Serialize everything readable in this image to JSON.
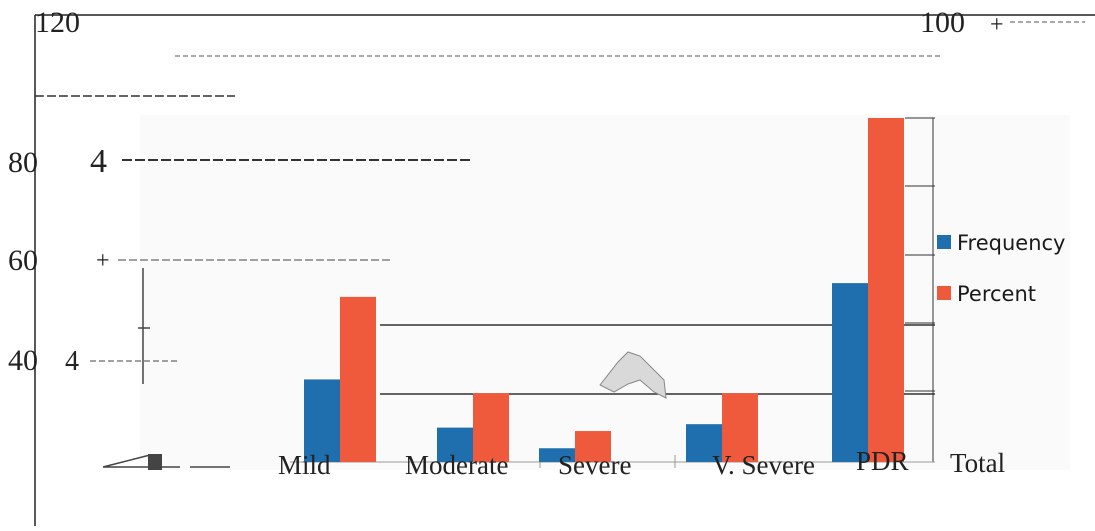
{
  "chart_data": {
    "type": "bar",
    "categories": [
      "Mild",
      "Moderate",
      "Severe",
      "V. Severe",
      "PDR"
    ],
    "extra_category_label": "Total",
    "series": [
      {
        "name": "Frequency",
        "color": "#1f6fae",
        "values": [
          12,
          5,
          2,
          5.5,
          26
        ]
      },
      {
        "name": "Percent",
        "color": "#ef5a3c",
        "values": [
          24,
          10,
          4.5,
          10,
          50
        ]
      }
    ],
    "y_tick_labels": [
      "120",
      "100",
      "80",
      "60",
      "40"
    ],
    "tick_marks": [
      "4",
      "+",
      "4"
    ],
    "legend": {
      "placement": "right"
    },
    "grid": true
  }
}
